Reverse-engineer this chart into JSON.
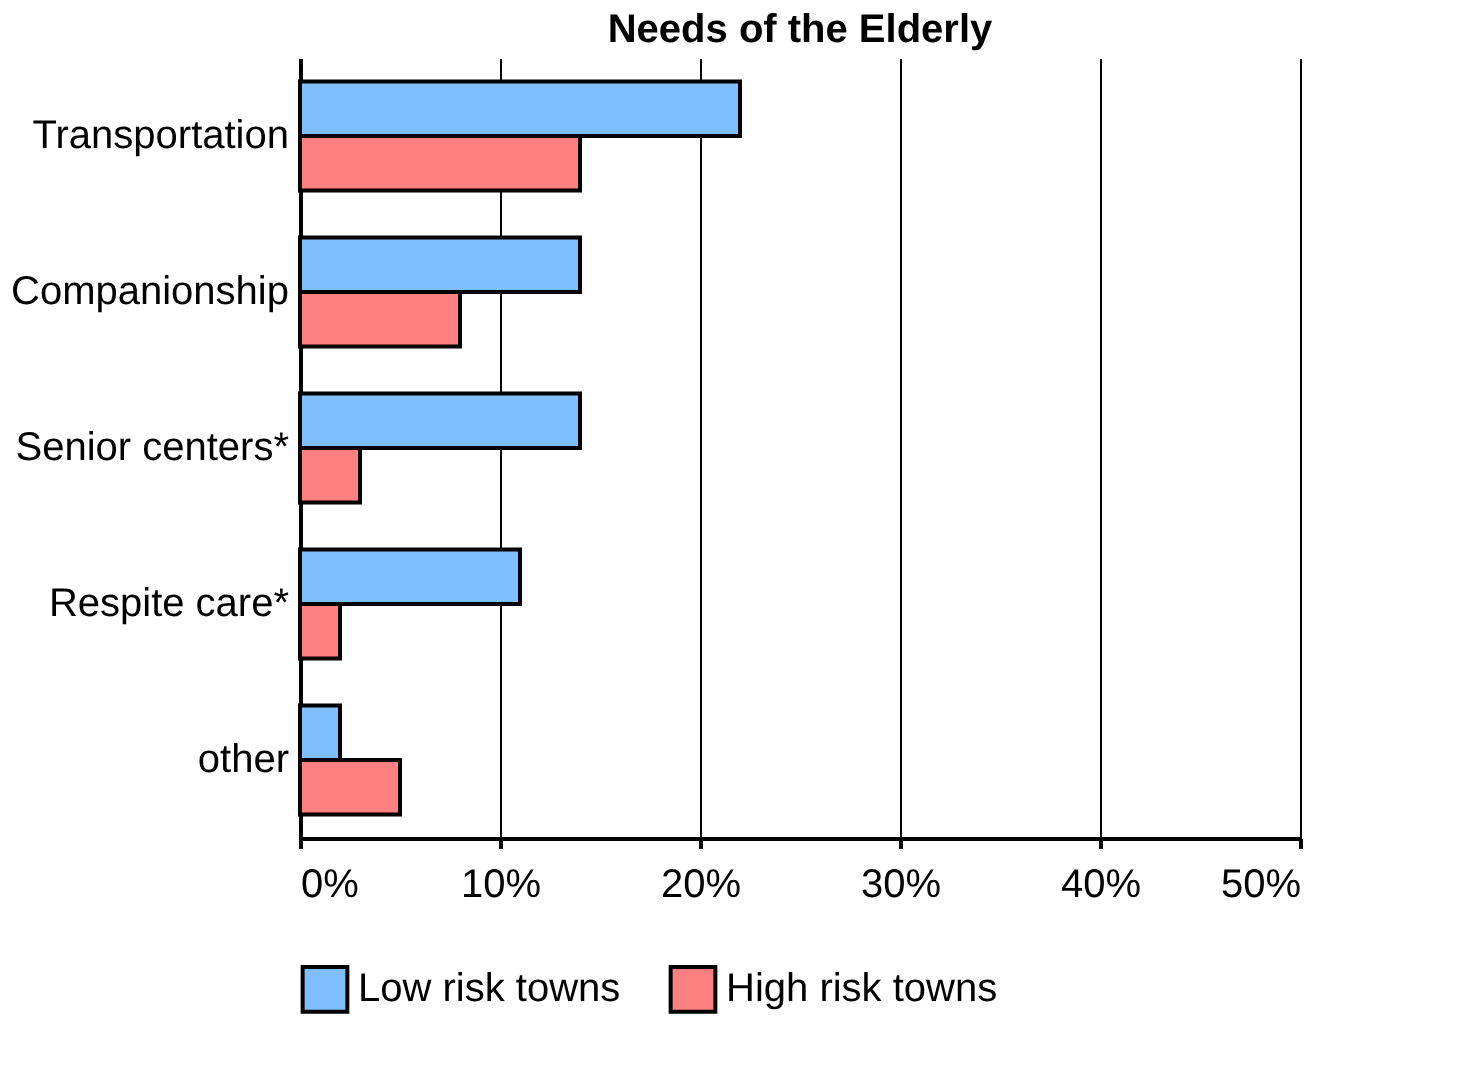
{
  "chart_data": {
    "type": "bar",
    "orientation": "horizontal",
    "title": "Needs of the Elderly",
    "categories": [
      "Transportation",
      "Companionship",
      "Senior centers*",
      "Respite care*",
      "other"
    ],
    "series": [
      {
        "name": "Low risk towns",
        "color": "#80bfff",
        "values": [
          22,
          14,
          14,
          11,
          2
        ]
      },
      {
        "name": "High risk towns",
        "color": "#ff8080",
        "values": [
          14,
          8,
          3,
          2,
          5
        ]
      }
    ],
    "xlim": [
      0,
      50
    ],
    "xticks": [
      {
        "value": 0,
        "label": "0%"
      },
      {
        "value": 10,
        "label": "10%"
      },
      {
        "value": 20,
        "label": "20%"
      },
      {
        "value": 30,
        "label": "30%"
      },
      {
        "value": 40,
        "label": "40%"
      },
      {
        "value": 50,
        "label": "50%"
      }
    ],
    "grid": "x",
    "legend": "bottom"
  }
}
